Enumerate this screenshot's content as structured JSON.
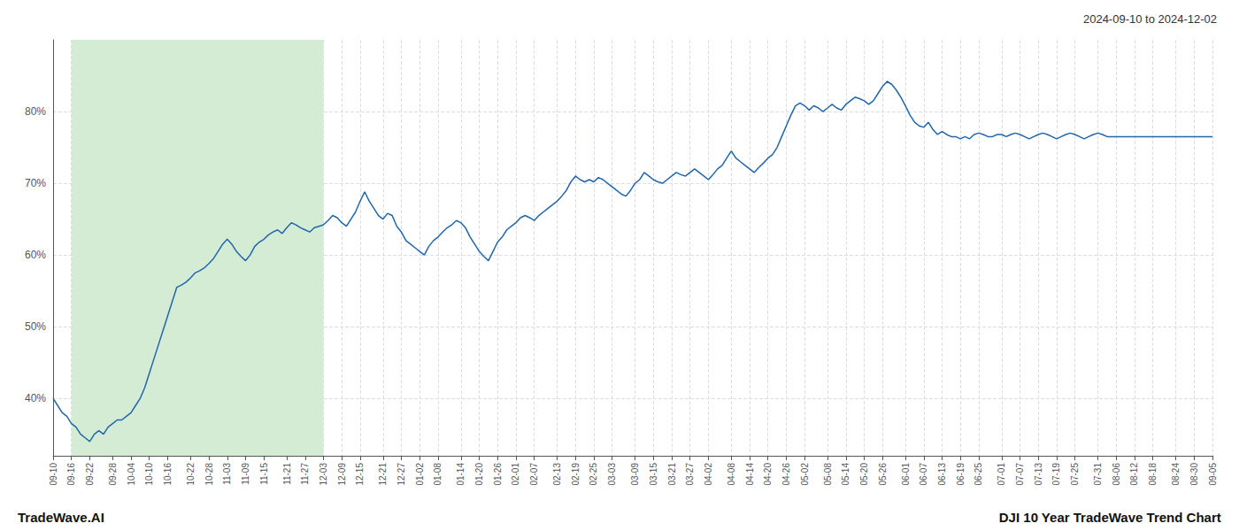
{
  "chart_data": {
    "type": "line",
    "title": "2024-09-10 to 2024-12-02",
    "annotations": [
      "TradeWave.AI",
      "DJI 10 Year TradeWave Trend Chart"
    ],
    "color": "#2166ac",
    "grid": true,
    "shade": {
      "from": "09-16",
      "to": "12-03",
      "color": "#d4ecd4"
    },
    "ylim": [
      32,
      90
    ],
    "yticks": [
      {
        "value": 40,
        "label": "40%"
      },
      {
        "value": 50,
        "label": "50%"
      },
      {
        "value": 60,
        "label": "60%"
      },
      {
        "value": 70,
        "label": "70%"
      },
      {
        "value": 80,
        "label": "80%"
      }
    ],
    "categories": [
      "09-10",
      null,
      null,
      null,
      "09-16",
      null,
      null,
      null,
      "09-22",
      null,
      null,
      null,
      null,
      "09-28",
      null,
      null,
      null,
      "10-04",
      null,
      null,
      null,
      "10-10",
      null,
      null,
      null,
      "10-16",
      null,
      null,
      null,
      null,
      "10-22",
      null,
      null,
      null,
      "10-28",
      null,
      null,
      null,
      "11-03",
      null,
      null,
      null,
      "11-09",
      null,
      null,
      null,
      "11-15",
      null,
      null,
      null,
      null,
      "11-21",
      null,
      null,
      null,
      "11-27",
      null,
      null,
      null,
      "12-03",
      null,
      null,
      null,
      "12-09",
      null,
      null,
      null,
      "12-15",
      null,
      null,
      null,
      null,
      "12-21",
      null,
      null,
      null,
      "12-27",
      null,
      null,
      null,
      "01-02",
      null,
      null,
      null,
      "01-08",
      null,
      null,
      null,
      null,
      "01-14",
      null,
      null,
      null,
      "01-20",
      null,
      null,
      null,
      "01-26",
      null,
      null,
      null,
      "02-01",
      null,
      null,
      null,
      "02-07",
      null,
      null,
      null,
      null,
      "02-13",
      null,
      null,
      null,
      "02-19",
      null,
      null,
      null,
      "02-25",
      null,
      null,
      null,
      "03-03",
      null,
      null,
      null,
      null,
      "03-09",
      null,
      null,
      null,
      "03-15",
      null,
      null,
      null,
      "03-21",
      null,
      null,
      null,
      "03-27",
      null,
      null,
      null,
      "04-02",
      null,
      null,
      null,
      null,
      "04-08",
      null,
      null,
      null,
      "04-14",
      null,
      null,
      null,
      "04-20",
      null,
      null,
      null,
      "04-26",
      null,
      null,
      null,
      "05-02",
      null,
      null,
      null,
      null,
      "05-08",
      null,
      null,
      null,
      "05-14",
      null,
      null,
      null,
      "05-20",
      null,
      null,
      null,
      "05-26",
      null,
      null,
      null,
      null,
      "06-01",
      null,
      null,
      null,
      "06-07",
      null,
      null,
      null,
      "06-13",
      null,
      null,
      null,
      "06-19",
      null,
      null,
      null,
      "06-25",
      null,
      null,
      null,
      null,
      "07-01",
      null,
      null,
      null,
      "07-07",
      null,
      null,
      null,
      "07-13",
      null,
      null,
      null,
      "07-19",
      null,
      null,
      null,
      "07-25",
      null,
      null,
      null,
      null,
      "07-31",
      null,
      null,
      null,
      "08-06",
      null,
      null,
      null,
      "08-12",
      null,
      null,
      null,
      "08-18",
      null,
      null,
      null,
      null,
      "08-24",
      null,
      null,
      null,
      "08-30",
      null,
      null,
      null,
      "09-05"
    ],
    "values": [
      40.0,
      39.0,
      38.0,
      37.5,
      36.5,
      36.0,
      35.0,
      34.5,
      34.0,
      35.0,
      35.5,
      35.0,
      36.0,
      36.5,
      37.0,
      37.0,
      37.5,
      38.0,
      39.0,
      40.0,
      41.5,
      43.5,
      45.5,
      47.5,
      49.5,
      51.5,
      53.5,
      55.5,
      55.8,
      56.2,
      56.8,
      57.5,
      57.8,
      58.2,
      58.8,
      59.5,
      60.5,
      61.5,
      62.2,
      61.5,
      60.5,
      59.8,
      59.2,
      60.0,
      61.2,
      61.8,
      62.2,
      62.8,
      63.2,
      63.5,
      63.0,
      63.8,
      64.5,
      64.2,
      63.8,
      63.5,
      63.2,
      63.8,
      64.0,
      64.2,
      64.8,
      65.5,
      65.2,
      64.5,
      64.0,
      65.0,
      66.0,
      67.5,
      68.8,
      67.5,
      66.5,
      65.5,
      65.0,
      65.8,
      65.5,
      64.0,
      63.2,
      62.0,
      61.5,
      61.0,
      60.5,
      60.0,
      61.2,
      62.0,
      62.5,
      63.2,
      63.8,
      64.2,
      64.8,
      64.5,
      63.8,
      62.5,
      61.5,
      60.5,
      59.8,
      59.2,
      60.5,
      61.8,
      62.5,
      63.5,
      64.0,
      64.5,
      65.2,
      65.5,
      65.2,
      64.8,
      65.5,
      66.0,
      66.5,
      67.0,
      67.5,
      68.2,
      69.0,
      70.2,
      71.0,
      70.5,
      70.2,
      70.5,
      70.2,
      70.8,
      70.5,
      70.0,
      69.5,
      69.0,
      68.5,
      68.2,
      69.0,
      70.0,
      70.5,
      71.5,
      71.0,
      70.5,
      70.2,
      70.0,
      70.5,
      71.0,
      71.5,
      71.2,
      71.0,
      71.5,
      72.0,
      71.5,
      71.0,
      70.5,
      71.2,
      72.0,
      72.5,
      73.5,
      74.5,
      73.5,
      73.0,
      72.5,
      72.0,
      71.5,
      72.2,
      72.8,
      73.5,
      74.0,
      75.0,
      76.5,
      78.0,
      79.5,
      80.8,
      81.2,
      80.8,
      80.2,
      80.8,
      80.5,
      80.0,
      80.5,
      81.0,
      80.5,
      80.2,
      81.0,
      81.5,
      82.0,
      81.8,
      81.5,
      81.0,
      81.5,
      82.5,
      83.5,
      84.2,
      83.8,
      83.0,
      82.0,
      80.8,
      79.5,
      78.5,
      78.0,
      77.8,
      78.5,
      77.5,
      76.8,
      77.2,
      76.8,
      76.5,
      76.5,
      76.2,
      76.5,
      76.2,
      76.8,
      77.0,
      76.8,
      76.5,
      76.5,
      76.8,
      76.8,
      76.5,
      76.8,
      77.0,
      76.8,
      76.5,
      76.2,
      76.5,
      76.8,
      77.0,
      76.8,
      76.5,
      76.2,
      76.5,
      76.8,
      77.0,
      76.8,
      76.5,
      76.2,
      76.5,
      76.8,
      77.0,
      76.8,
      76.5,
      76.5,
      76.5,
      76.5,
      76.5,
      76.5,
      76.5,
      76.5,
      76.5,
      76.5,
      76.5,
      76.5,
      76.5,
      76.5,
      76.5,
      76.5,
      76.5,
      76.5,
      76.5,
      76.5,
      76.5,
      76.5,
      76.5,
      76.5
    ]
  }
}
